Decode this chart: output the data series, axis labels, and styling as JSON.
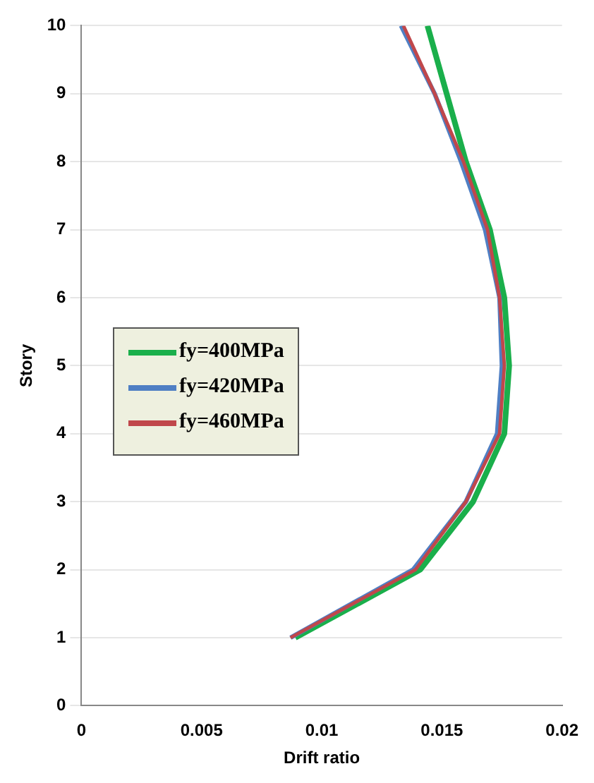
{
  "chart_data": {
    "type": "line",
    "xlabel": "Drift ratio",
    "ylabel": "Story",
    "xlim": [
      0,
      0.02
    ],
    "xticks": [
      0,
      0.005,
      0.01,
      0.015,
      0.02
    ],
    "ylim": [
      0,
      10
    ],
    "yticks": [
      0,
      1,
      2,
      3,
      4,
      5,
      6,
      7,
      8,
      9,
      10
    ],
    "grid": "y",
    "legend": "left",
    "marker": "none",
    "series": [
      {
        "name": "fy=400MPa",
        "color": "#1aaf4b",
        "x": [
          0.0089,
          0.0141,
          0.0163,
          0.0176,
          0.0178,
          0.0176,
          0.017,
          0.016,
          0.0152,
          0.0144
        ],
        "values": [
          1,
          2,
          3,
          4,
          5,
          6,
          7,
          8,
          9,
          10
        ]
      },
      {
        "name": "fy=420MPa",
        "color": "#4f7fc4",
        "x": [
          0.0087,
          0.0138,
          0.016,
          0.0173,
          0.0175,
          0.0174,
          0.0168,
          0.0158,
          0.0147,
          0.0133
        ],
        "values": [
          1,
          2,
          3,
          4,
          5,
          6,
          7,
          8,
          9,
          10
        ]
      },
      {
        "name": "fy=460MPa",
        "color": "#c0474b",
        "x": [
          0.0087,
          0.0139,
          0.016,
          0.0174,
          0.0176,
          0.0174,
          0.0169,
          0.0159,
          0.0147,
          0.0134
        ],
        "values": [
          1,
          2,
          3,
          4,
          5,
          6,
          7,
          8,
          9,
          10
        ]
      }
    ]
  }
}
